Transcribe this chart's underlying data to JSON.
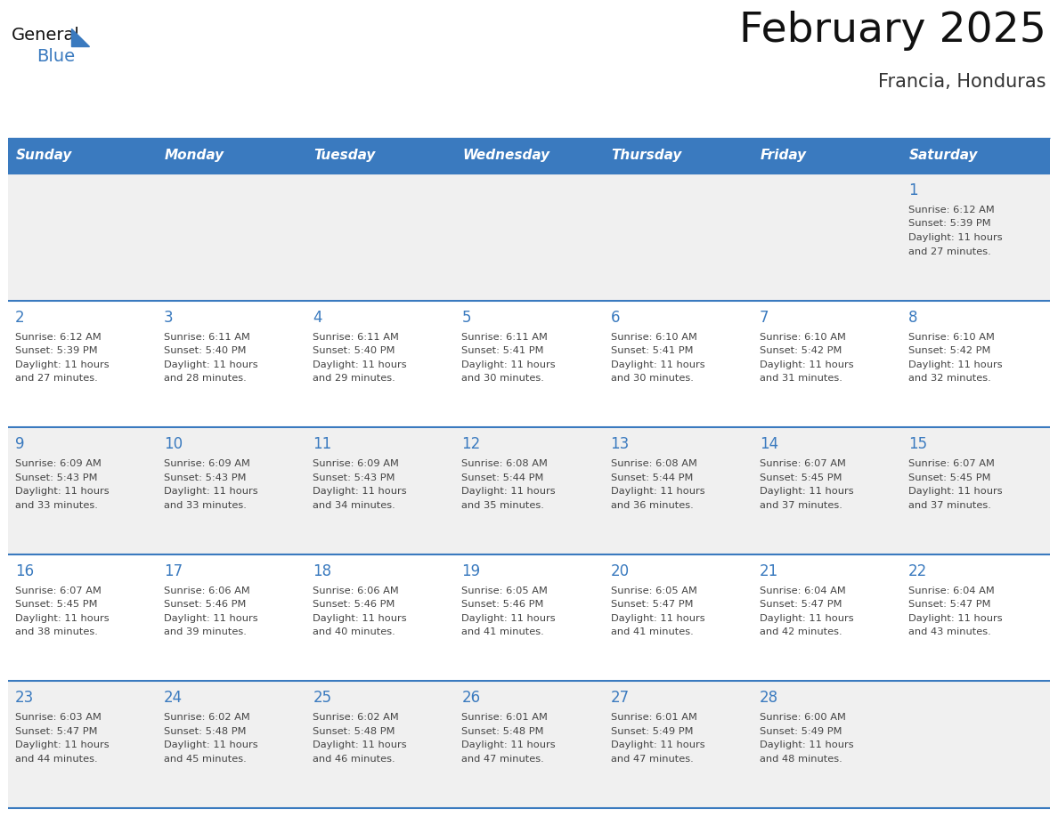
{
  "title": "February 2025",
  "subtitle": "Francia, Honduras",
  "header_color": "#3a7abf",
  "header_text_color": "#ffffff",
  "day_names": [
    "Sunday",
    "Monday",
    "Tuesday",
    "Wednesday",
    "Thursday",
    "Friday",
    "Saturday"
  ],
  "bg_color": "#ffffff",
  "cell_bg_row0": "#f0f0f0",
  "cell_bg_row1": "#ffffff",
  "divider_color": "#3a7abf",
  "date_color": "#3a7abf",
  "text_color": "#444444",
  "calendar": [
    [
      null,
      null,
      null,
      null,
      null,
      null,
      {
        "day": 1,
        "sunrise": "6:12 AM",
        "sunset": "5:39 PM",
        "daylight": "11 hours and 27 minutes."
      }
    ],
    [
      {
        "day": 2,
        "sunrise": "6:12 AM",
        "sunset": "5:39 PM",
        "daylight": "11 hours and 27 minutes."
      },
      {
        "day": 3,
        "sunrise": "6:11 AM",
        "sunset": "5:40 PM",
        "daylight": "11 hours and 28 minutes."
      },
      {
        "day": 4,
        "sunrise": "6:11 AM",
        "sunset": "5:40 PM",
        "daylight": "11 hours and 29 minutes."
      },
      {
        "day": 5,
        "sunrise": "6:11 AM",
        "sunset": "5:41 PM",
        "daylight": "11 hours and 30 minutes."
      },
      {
        "day": 6,
        "sunrise": "6:10 AM",
        "sunset": "5:41 PM",
        "daylight": "11 hours and 30 minutes."
      },
      {
        "day": 7,
        "sunrise": "6:10 AM",
        "sunset": "5:42 PM",
        "daylight": "11 hours and 31 minutes."
      },
      {
        "day": 8,
        "sunrise": "6:10 AM",
        "sunset": "5:42 PM",
        "daylight": "11 hours and 32 minutes."
      }
    ],
    [
      {
        "day": 9,
        "sunrise": "6:09 AM",
        "sunset": "5:43 PM",
        "daylight": "11 hours and 33 minutes."
      },
      {
        "day": 10,
        "sunrise": "6:09 AM",
        "sunset": "5:43 PM",
        "daylight": "11 hours and 33 minutes."
      },
      {
        "day": 11,
        "sunrise": "6:09 AM",
        "sunset": "5:43 PM",
        "daylight": "11 hours and 34 minutes."
      },
      {
        "day": 12,
        "sunrise": "6:08 AM",
        "sunset": "5:44 PM",
        "daylight": "11 hours and 35 minutes."
      },
      {
        "day": 13,
        "sunrise": "6:08 AM",
        "sunset": "5:44 PM",
        "daylight": "11 hours and 36 minutes."
      },
      {
        "day": 14,
        "sunrise": "6:07 AM",
        "sunset": "5:45 PM",
        "daylight": "11 hours and 37 minutes."
      },
      {
        "day": 15,
        "sunrise": "6:07 AM",
        "sunset": "5:45 PM",
        "daylight": "11 hours and 37 minutes."
      }
    ],
    [
      {
        "day": 16,
        "sunrise": "6:07 AM",
        "sunset": "5:45 PM",
        "daylight": "11 hours and 38 minutes."
      },
      {
        "day": 17,
        "sunrise": "6:06 AM",
        "sunset": "5:46 PM",
        "daylight": "11 hours and 39 minutes."
      },
      {
        "day": 18,
        "sunrise": "6:06 AM",
        "sunset": "5:46 PM",
        "daylight": "11 hours and 40 minutes."
      },
      {
        "day": 19,
        "sunrise": "6:05 AM",
        "sunset": "5:46 PM",
        "daylight": "11 hours and 41 minutes."
      },
      {
        "day": 20,
        "sunrise": "6:05 AM",
        "sunset": "5:47 PM",
        "daylight": "11 hours and 41 minutes."
      },
      {
        "day": 21,
        "sunrise": "6:04 AM",
        "sunset": "5:47 PM",
        "daylight": "11 hours and 42 minutes."
      },
      {
        "day": 22,
        "sunrise": "6:04 AM",
        "sunset": "5:47 PM",
        "daylight": "11 hours and 43 minutes."
      }
    ],
    [
      {
        "day": 23,
        "sunrise": "6:03 AM",
        "sunset": "5:47 PM",
        "daylight": "11 hours and 44 minutes."
      },
      {
        "day": 24,
        "sunrise": "6:02 AM",
        "sunset": "5:48 PM",
        "daylight": "11 hours and 45 minutes."
      },
      {
        "day": 25,
        "sunrise": "6:02 AM",
        "sunset": "5:48 PM",
        "daylight": "11 hours and 46 minutes."
      },
      {
        "day": 26,
        "sunrise": "6:01 AM",
        "sunset": "5:48 PM",
        "daylight": "11 hours and 47 minutes."
      },
      {
        "day": 27,
        "sunrise": "6:01 AM",
        "sunset": "5:49 PM",
        "daylight": "11 hours and 47 minutes."
      },
      {
        "day": 28,
        "sunrise": "6:00 AM",
        "sunset": "5:49 PM",
        "daylight": "11 hours and 48 minutes."
      },
      null
    ]
  ]
}
